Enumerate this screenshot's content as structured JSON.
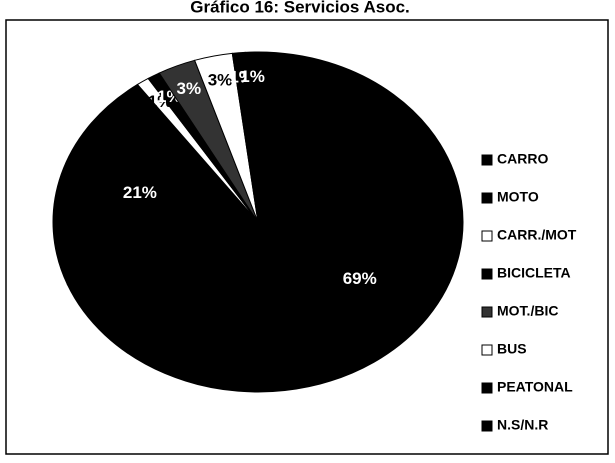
{
  "chart_data": {
    "type": "pie",
    "title": "Gráfico 16: Servicios Asoc.",
    "categories": [
      "CARRO",
      "MOTO",
      "CARR./MOT",
      "BICICLETA",
      "MOT./BIC",
      "BUS",
      "PEATONAL",
      "N.S/N.R"
    ],
    "values": [
      69,
      21,
      1,
      1,
      3,
      3,
      1,
      1
    ],
    "value_labels": [
      "69%",
      "21%",
      "1%",
      "1%",
      "3%",
      "3%",
      "1%",
      "1%"
    ],
    "colors": [
      "#000000",
      "#000000",
      "#ffffff",
      "#000000",
      "#333333",
      "#ffffff",
      "#000000",
      "#000000"
    ],
    "legend": "right"
  }
}
